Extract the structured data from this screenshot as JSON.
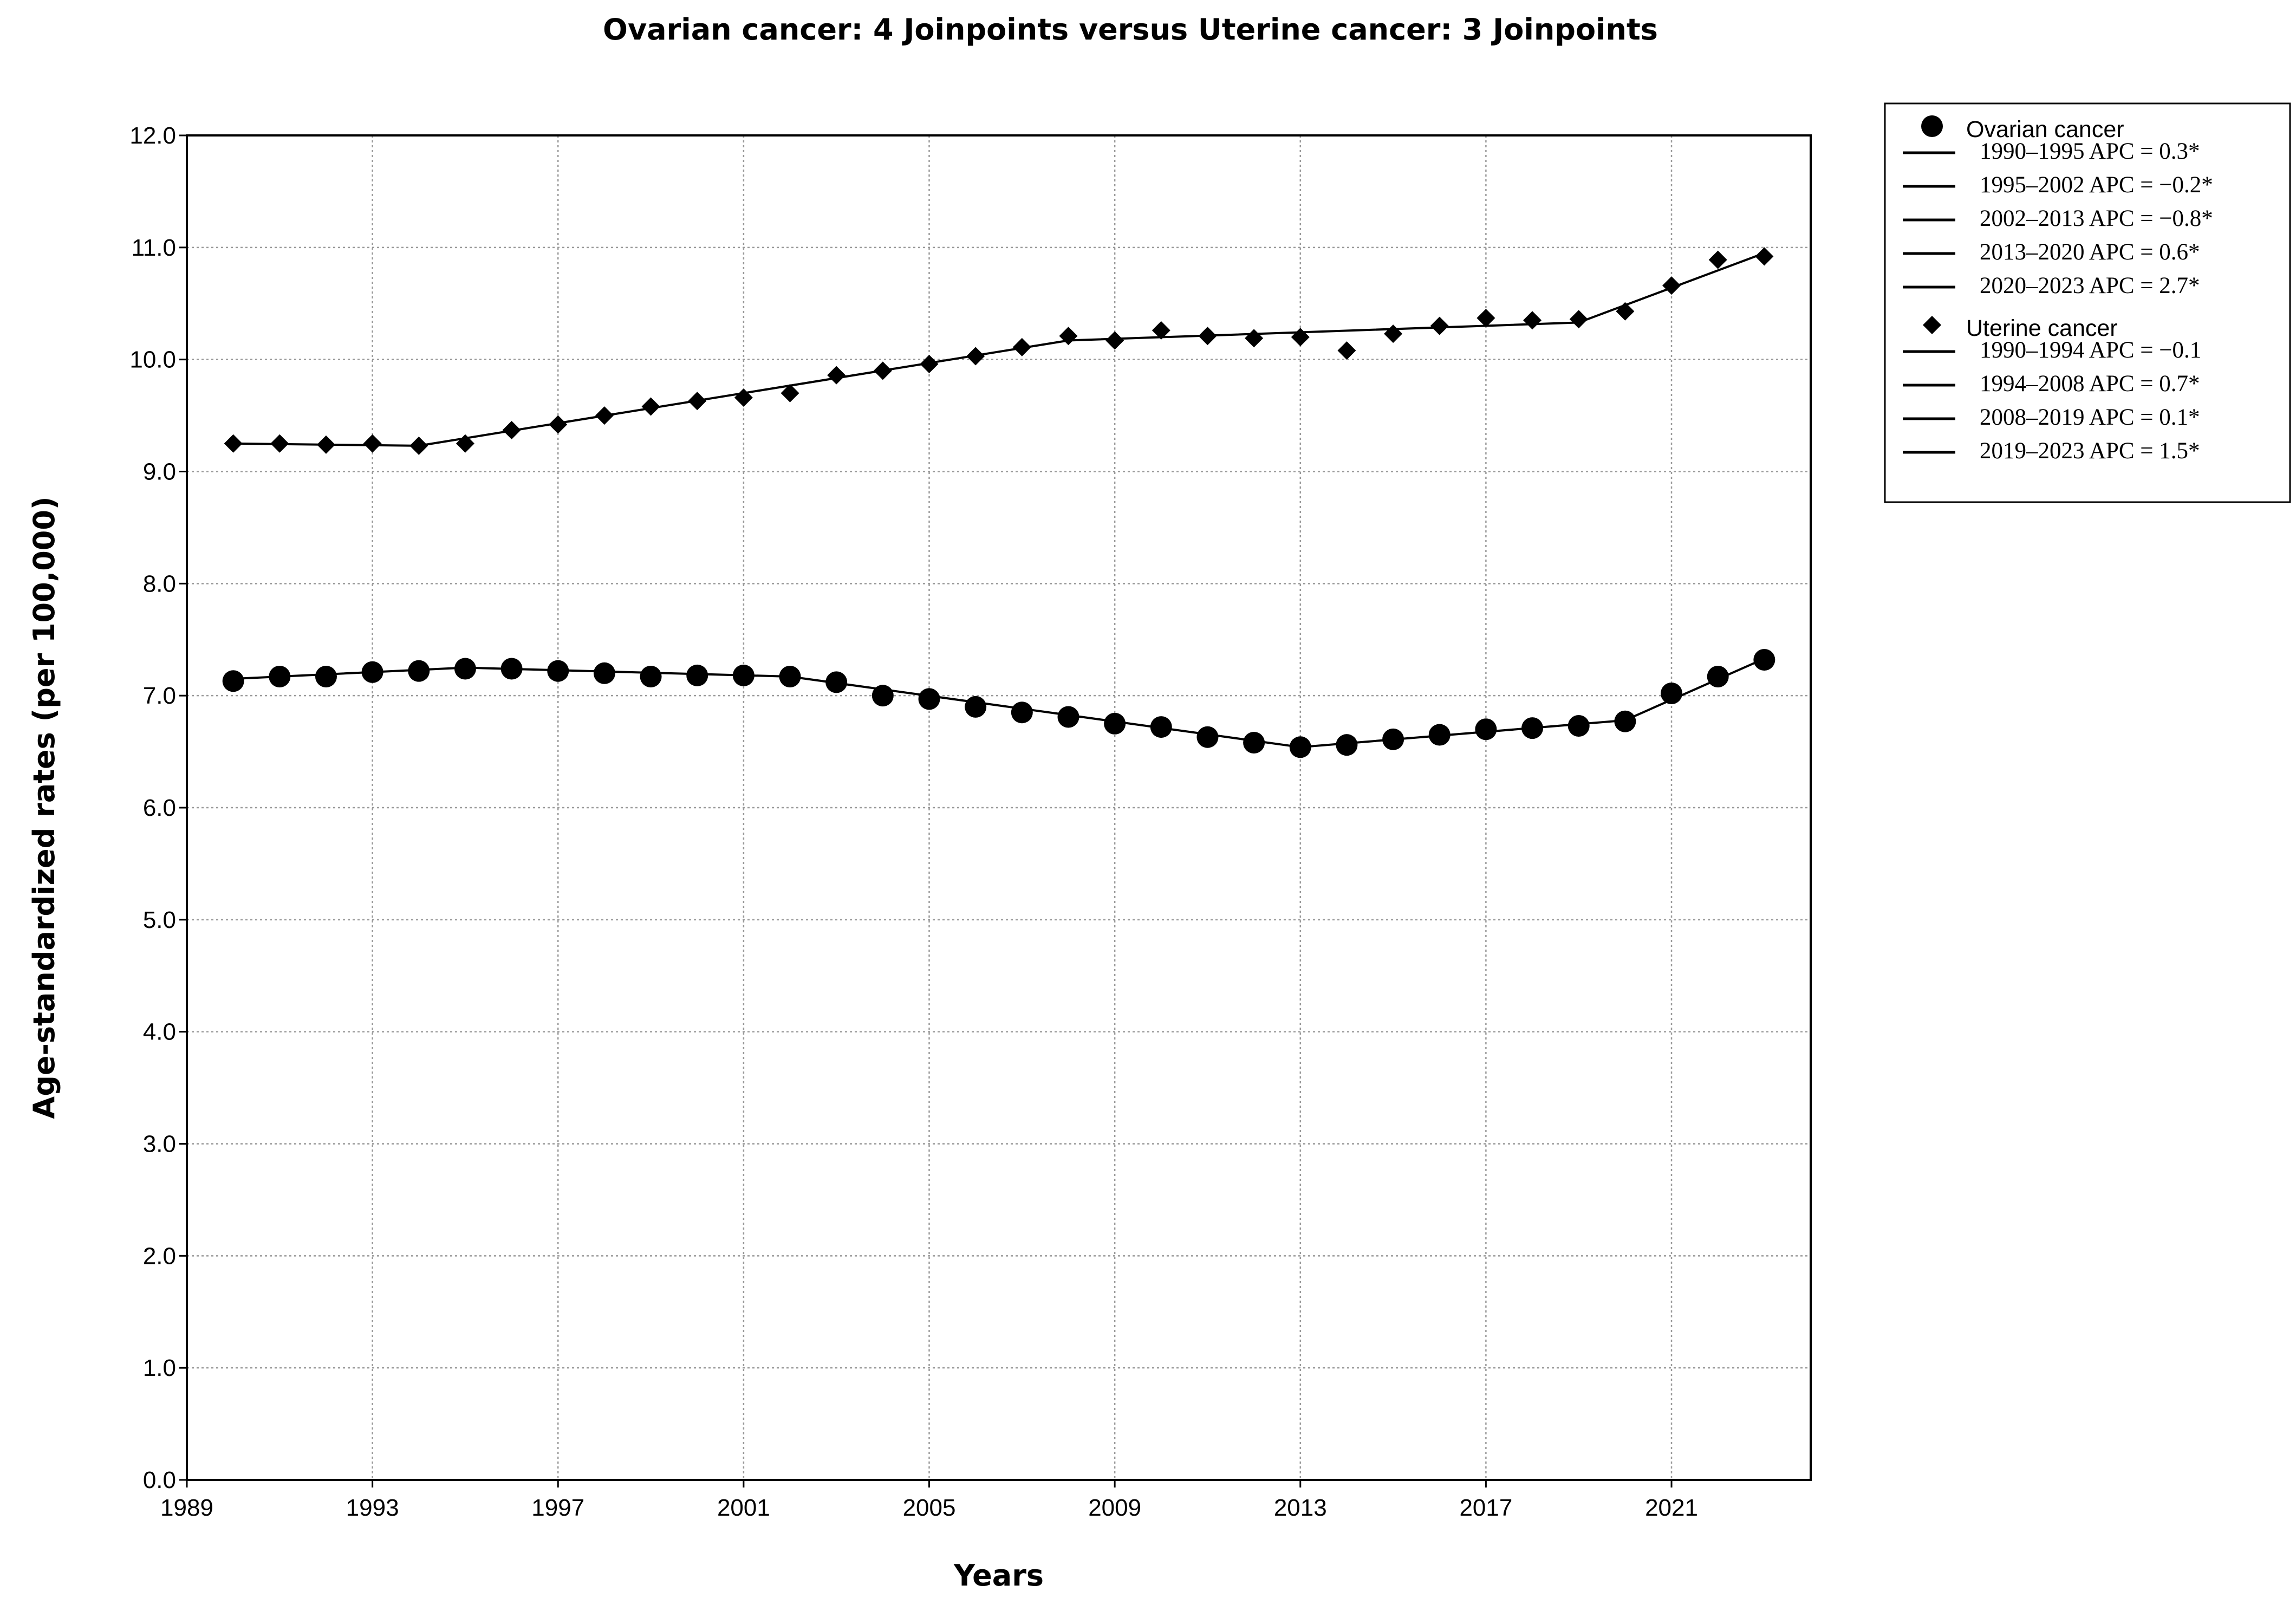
{
  "chart_data": {
    "type": "line",
    "title": "Ovarian cancer: 4 Joinpoints  versus  Uterine cancer: 3 Joinpoints",
    "xlabel": "Years",
    "ylabel": "Age-standardized rates (per 100,000)",
    "xlim": [
      1989,
      2024
    ],
    "ylim": [
      0,
      12
    ],
    "x_ticks": [
      "1989",
      "1993",
      "1997",
      "2001",
      "2005",
      "2009",
      "2013",
      "2017",
      "2021"
    ],
    "y_ticks": [
      "0.0",
      "1.0",
      "2.0",
      "3.0",
      "4.0",
      "5.0",
      "6.0",
      "7.0",
      "8.0",
      "9.0",
      "10.0",
      "11.0",
      "12.0"
    ],
    "grid": true,
    "legend_position": "right",
    "x": [
      1990,
      1991,
      1992,
      1993,
      1994,
      1995,
      1996,
      1997,
      1998,
      1999,
      2000,
      2001,
      2002,
      2003,
      2004,
      2005,
      2006,
      2007,
      2008,
      2009,
      2010,
      2011,
      2012,
      2013,
      2014,
      2015,
      2016,
      2017,
      2018,
      2019,
      2020,
      2021,
      2022,
      2023
    ],
    "series": [
      {
        "name": "Ovarian cancer",
        "marker": "circle",
        "values": [
          7.13,
          7.17,
          7.17,
          7.21,
          7.22,
          7.24,
          7.24,
          7.22,
          7.2,
          7.17,
          7.18,
          7.18,
          7.17,
          7.12,
          7.0,
          6.97,
          6.9,
          6.85,
          6.81,
          6.75,
          6.72,
          6.63,
          6.58,
          6.54,
          6.56,
          6.61,
          6.65,
          6.7,
          6.71,
          6.73,
          6.77,
          7.02,
          7.17,
          7.32
        ],
        "trend": [
          [
            1990,
            7.15
          ],
          [
            1995,
            7.25
          ],
          [
            2002,
            7.17
          ],
          [
            2013,
            6.54
          ],
          [
            2020,
            6.78
          ],
          [
            2023,
            7.33
          ]
        ],
        "segments": [
          "1990–1995 APC = 0.3*",
          "1995–2002 APC = −0.2*",
          "2002–2013 APC = −0.8*",
          "2013–2020 APC = 0.6*",
          "2020–2023 APC = 2.7*"
        ]
      },
      {
        "name": "Uterine cancer",
        "marker": "diamond",
        "values": [
          9.25,
          9.25,
          9.24,
          9.25,
          9.23,
          9.25,
          9.37,
          9.42,
          9.5,
          9.58,
          9.63,
          9.66,
          9.7,
          9.86,
          9.9,
          9.96,
          10.03,
          10.11,
          10.21,
          10.17,
          10.26,
          10.21,
          10.19,
          10.2,
          10.08,
          10.23,
          10.3,
          10.37,
          10.35,
          10.36,
          10.43,
          10.66,
          10.89,
          10.92
        ],
        "trend": [
          [
            1990,
            9.25
          ],
          [
            1994,
            9.23
          ],
          [
            2008,
            10.17
          ],
          [
            2019,
            10.33
          ],
          [
            2023,
            10.95
          ]
        ],
        "segments": [
          "1990–1994 APC = −0.1",
          "1994–2008 APC = 0.7*",
          "2008–2019 APC = 0.1*",
          "2019–2023 APC = 1.5*"
        ]
      }
    ]
  }
}
